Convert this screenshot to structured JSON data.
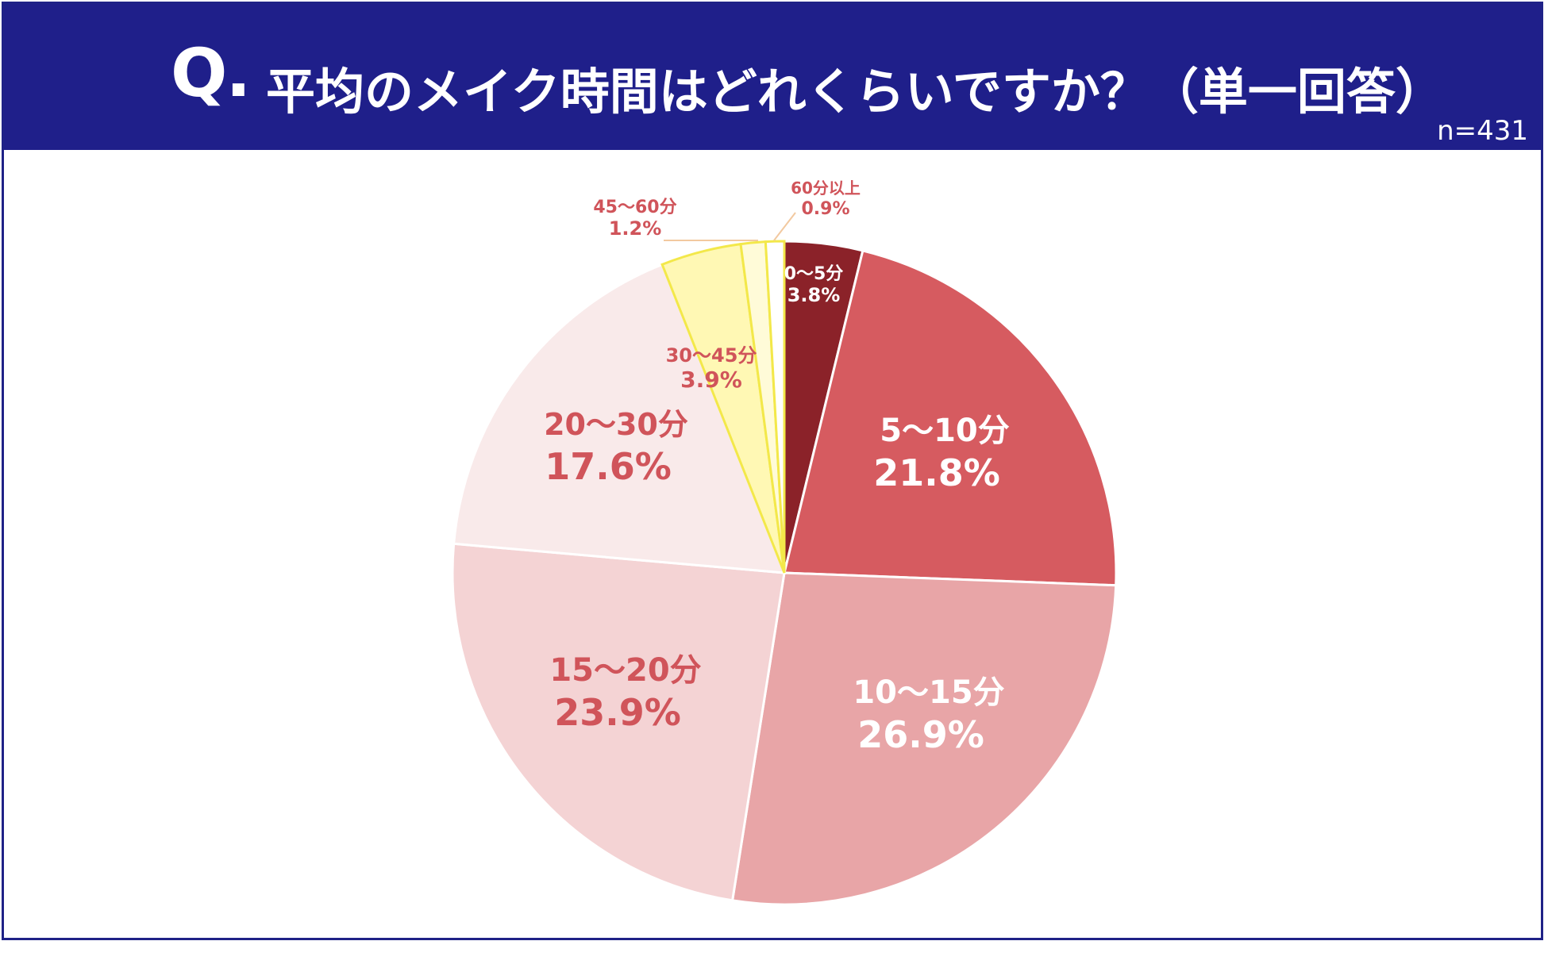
{
  "header": {
    "q_mark": "Q.",
    "title": "平均のメイク時間はどれくらいですか？（単一回答）",
    "sample_size": "n=431"
  },
  "colors": {
    "header_bg": "#1f1f8a",
    "frame": "#1f2287"
  },
  "chart_data": {
    "type": "pie",
    "title": "平均のメイク時間はどれくらいですか？（単一回答）",
    "start": "12 o'clock",
    "direction": "clockwise",
    "slices": [
      {
        "label": "0～5分",
        "value": 3.8,
        "value_label": "3.8%",
        "color": "#8b2229",
        "text_color": "#ffffff"
      },
      {
        "label": "5～10分",
        "value": 21.8,
        "value_label": "21.8%",
        "color": "#d65b60",
        "text_color": "#ffffff"
      },
      {
        "label": "10～15分",
        "value": 26.9,
        "value_label": "26.9%",
        "color": "#e8a5a7",
        "text_color": "#ffffff"
      },
      {
        "label": "15～20分",
        "value": 23.9,
        "value_label": "23.9%",
        "color": "#f4d3d4",
        "text_color": "#d0545a"
      },
      {
        "label": "20～30分",
        "value": 17.6,
        "value_label": "17.6%",
        "color": "#f9eaea",
        "text_color": "#d0545a"
      },
      {
        "label": "30～45分",
        "value": 3.9,
        "value_label": "3.9%",
        "color": "#fff8b4",
        "text_color": "#d0545a"
      },
      {
        "label": "45～60分",
        "value": 1.2,
        "value_label": "1.2%",
        "color": "#fffbd8",
        "text_color": "#d0545a"
      },
      {
        "label": "60分以上",
        "value": 0.9,
        "value_label": "0.9%",
        "color": "#ffffff",
        "text_color": "#d0545a"
      }
    ]
  }
}
